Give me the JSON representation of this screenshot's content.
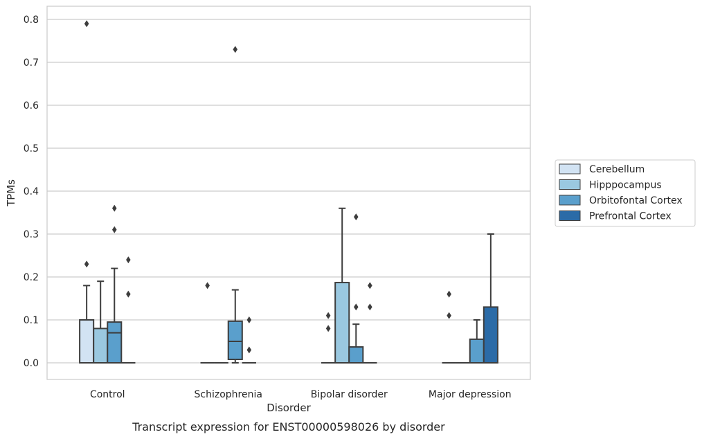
{
  "chart_data": {
    "type": "box",
    "title": "",
    "caption": "Transcript expression for ENST00000598026 by disorder",
    "xlabel": "Disorder",
    "ylabel": "TPMs",
    "ylim": [
      -0.04,
      0.83
    ],
    "yticks": [
      "0.0",
      "0.1",
      "0.2",
      "0.3",
      "0.4",
      "0.5",
      "0.6",
      "0.7",
      "0.8"
    ],
    "grid": true,
    "legend_position": "right",
    "categories": [
      "Control",
      "Schizophrenia",
      "Bipolar disorder",
      "Major depression"
    ],
    "series": [
      {
        "name": "Cerebellum",
        "color": "#d2e3f3",
        "boxes": [
          {
            "q1": 0.0,
            "median": 0.0,
            "q3": 0.1,
            "whisker_low": 0.0,
            "whisker_high": 0.18,
            "outliers": [
              0.79,
              0.23
            ]
          },
          {
            "q1": 0.0,
            "median": 0.0,
            "q3": 0.0,
            "whisker_low": 0.0,
            "whisker_high": 0.0,
            "outliers": [
              0.18
            ]
          },
          {
            "q1": 0.0,
            "median": 0.0,
            "q3": 0.0,
            "whisker_low": 0.0,
            "whisker_high": 0.0,
            "outliers": [
              0.11,
              0.08
            ]
          },
          {
            "q1": 0.0,
            "median": 0.0,
            "q3": 0.0,
            "whisker_low": 0.0,
            "whisker_high": 0.0,
            "outliers": [
              0.16,
              0.11
            ]
          }
        ]
      },
      {
        "name": "Hipppocampus",
        "color": "#9ac8e0",
        "boxes": [
          {
            "q1": 0.0,
            "median": 0.0,
            "q3": 0.08,
            "whisker_low": 0.0,
            "whisker_high": 0.19,
            "outliers": []
          },
          {
            "q1": 0.0,
            "median": 0.0,
            "q3": 0.0,
            "whisker_low": 0.0,
            "whisker_high": 0.0,
            "outliers": []
          },
          {
            "q1": 0.0,
            "median": 0.0,
            "q3": 0.187,
            "whisker_low": 0.0,
            "whisker_high": 0.36,
            "outliers": []
          },
          {
            "q1": 0.0,
            "median": 0.0,
            "q3": 0.0,
            "whisker_low": 0.0,
            "whisker_high": 0.0,
            "outliers": []
          }
        ]
      },
      {
        "name": "Orbitofontal Cortex",
        "color": "#5a9fcc",
        "boxes": [
          {
            "q1": 0.0,
            "median": 0.07,
            "q3": 0.095,
            "whisker_low": 0.0,
            "whisker_high": 0.22,
            "outliers": [
              0.36,
              0.31
            ]
          },
          {
            "q1": 0.008,
            "median": 0.05,
            "q3": 0.097,
            "whisker_low": 0.0,
            "whisker_high": 0.17,
            "outliers": [
              0.73
            ]
          },
          {
            "q1": 0.0,
            "median": 0.0,
            "q3": 0.037,
            "whisker_low": 0.0,
            "whisker_high": 0.09,
            "outliers": [
              0.34,
              0.13
            ]
          },
          {
            "q1": 0.0,
            "median": 0.0,
            "q3": 0.055,
            "whisker_low": 0.0,
            "whisker_high": 0.1,
            "outliers": []
          }
        ]
      },
      {
        "name": "Prefrontal Cortex",
        "color": "#2b6ba7",
        "boxes": [
          {
            "q1": 0.0,
            "median": 0.0,
            "q3": 0.0,
            "whisker_low": 0.0,
            "whisker_high": 0.0,
            "outliers": [
              0.24,
              0.16
            ]
          },
          {
            "q1": 0.0,
            "median": 0.0,
            "q3": 0.0,
            "whisker_low": 0.0,
            "whisker_high": 0.0,
            "outliers": [
              0.1,
              0.03
            ]
          },
          {
            "q1": 0.0,
            "median": 0.0,
            "q3": 0.0,
            "whisker_low": 0.0,
            "whisker_high": 0.0,
            "outliers": [
              0.18,
              0.13
            ]
          },
          {
            "q1": 0.0,
            "median": 0.0,
            "q3": 0.13,
            "whisker_low": 0.0,
            "whisker_high": 0.3,
            "outliers": []
          }
        ]
      }
    ]
  }
}
